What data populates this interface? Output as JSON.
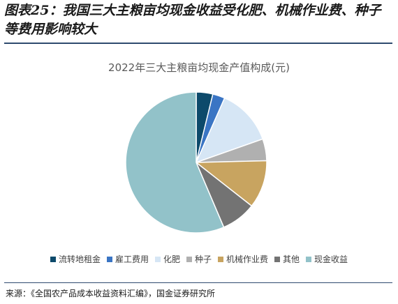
{
  "figure_title": "图表25：我国三大主粮亩均现金收益受化肥、机械作业费、种子等费用影响较大",
  "source": "来源：《全国农产品成本收益资料汇编》，国金证券研究所",
  "chart_data": {
    "type": "pie",
    "title": "2022年三大主粮亩均现金产值构成(元)",
    "series": [
      {
        "name": "流转地租金",
        "value": 3.8,
        "color": "#0d4a6b"
      },
      {
        "name": "雇工费用",
        "value": 2.8,
        "color": "#3a75c4"
      },
      {
        "name": "化肥",
        "value": 13.0,
        "color": "#d6e6f5"
      },
      {
        "name": "种子",
        "value": 5.0,
        "color": "#b0b0b0"
      },
      {
        "name": "机械作业费",
        "value": 11.0,
        "color": "#c8a460"
      },
      {
        "name": "其他",
        "value": 8.0,
        "color": "#737373"
      },
      {
        "name": "现金收益",
        "value": 56.4,
        "color": "#92c2c9"
      }
    ],
    "legend_position": "bottom"
  }
}
